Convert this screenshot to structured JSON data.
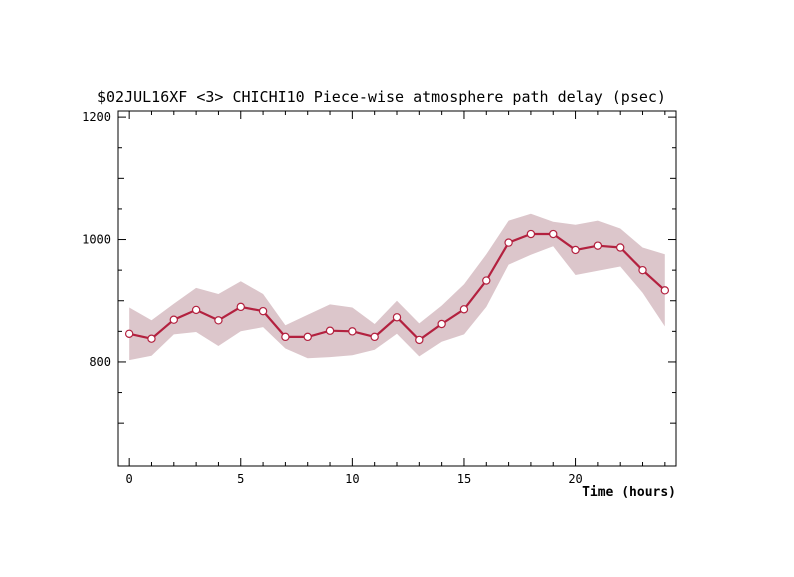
{
  "chart_data": {
    "type": "line",
    "title": "$02JUL16XF <3>  CHICHI10  Piece-wise atmosphere path delay (psec)",
    "xlabel": "Time (hours)",
    "ylabel": "",
    "xlim": [
      -0.5,
      24.5
    ],
    "ylim": [
      630,
      1210
    ],
    "x_ticks": [
      0,
      5,
      10,
      15,
      20
    ],
    "y_ticks": [
      800,
      1000,
      1200
    ],
    "grid": false,
    "colors": {
      "line": "#b3213f",
      "band": "#dcc6cb",
      "marker_fill": "#ffffff"
    },
    "x": [
      0,
      1,
      2,
      3,
      4,
      5,
      6,
      7,
      8,
      9,
      10,
      11,
      12,
      13,
      14,
      15,
      16,
      17,
      18,
      19,
      20,
      21,
      22,
      23,
      24
    ],
    "y": [
      846,
      838,
      869,
      885,
      868,
      890,
      883,
      841,
      841,
      851,
      850,
      841,
      873,
      836,
      862,
      886,
      933,
      995,
      1009,
      1009,
      983,
      990,
      987,
      950,
      917
    ],
    "upper": [
      889,
      868,
      895,
      921,
      911,
      932,
      911,
      860,
      877,
      894,
      889,
      862,
      900,
      863,
      892,
      927,
      976,
      1031,
      1042,
      1029,
      1024,
      1031,
      1018,
      987,
      976
    ],
    "lower": [
      803,
      810,
      845,
      849,
      826,
      850,
      857,
      822,
      806,
      808,
      811,
      820,
      846,
      809,
      833,
      845,
      890,
      959,
      975,
      989,
      942,
      949,
      956,
      913,
      858
    ]
  }
}
